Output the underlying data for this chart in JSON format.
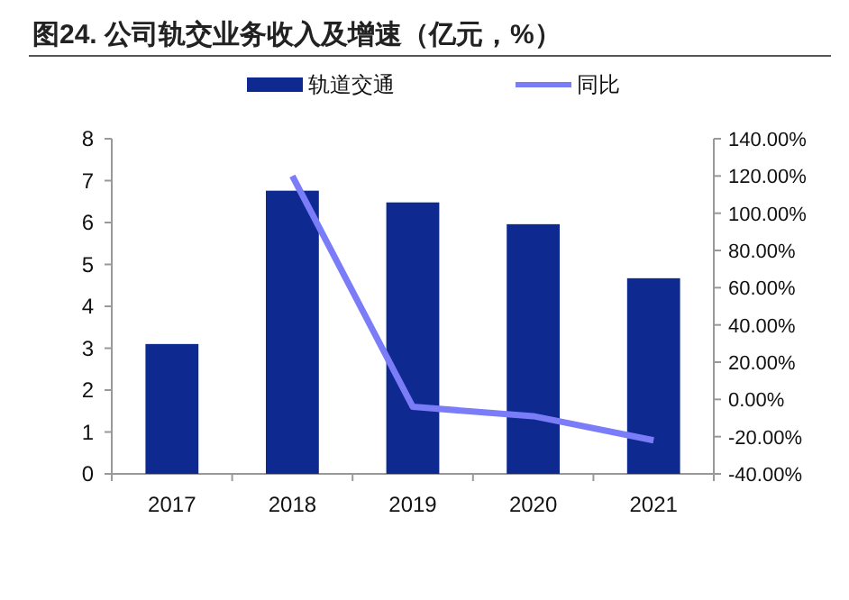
{
  "chart_data": {
    "type": "bar",
    "title": "图24. 公司轨交业务收入及增速（亿元，%）",
    "categories": [
      "2017",
      "2018",
      "2019",
      "2020",
      "2021"
    ],
    "series": [
      {
        "name": "轨道交通",
        "color": "#0e298f",
        "values": [
          3.1,
          6.76,
          6.48,
          5.96,
          4.67
        ]
      },
      {
        "name": "同比",
        "type": "line",
        "axis": "y2",
        "color": "#7b7cf7",
        "values": [
          null,
          120,
          -4,
          -9,
          -22
        ]
      }
    ],
    "ylim": [
      0,
      8
    ],
    "yticks": [
      0,
      1,
      2,
      3,
      4,
      5,
      6,
      7,
      8
    ],
    "y2lim": [
      -40,
      140
    ],
    "y2ticks": [
      {
        "value": -40,
        "label": "-40.00%"
      },
      {
        "value": -20,
        "label": "-20.00%"
      },
      {
        "value": 0,
        "label": "0.00%"
      },
      {
        "value": 20,
        "label": "20.00%"
      },
      {
        "value": 40,
        "label": "40.00%"
      },
      {
        "value": 60,
        "label": "60.00%"
      },
      {
        "value": 80,
        "label": "80.00%"
      },
      {
        "value": 100,
        "label": "100.00%"
      },
      {
        "value": 120,
        "label": "120.00%"
      },
      {
        "value": 140,
        "label": "140.00%"
      }
    ],
    "legend": "top"
  }
}
